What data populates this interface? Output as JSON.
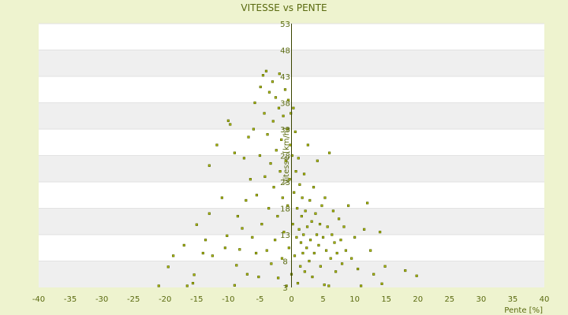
{
  "chart_data": {
    "type": "scatter",
    "title": "VITESSE vs PENTE",
    "xlabel": "Pente [%]",
    "ylabel": "Vitesse [km/h]",
    "xlim": [
      -40,
      40
    ],
    "ylim": [
      3,
      53
    ],
    "xticks": [
      "-40",
      "-35",
      "-30",
      "-25",
      "-20",
      "-15",
      "-10",
      "-5",
      "0",
      "5",
      "10",
      "15",
      "20",
      "25",
      "30",
      "35",
      "40"
    ],
    "yticks": [
      "53",
      "48",
      "43",
      "38",
      "33",
      "28",
      "23",
      "18",
      "13",
      "8",
      "3"
    ],
    "y_bottom_label": "3",
    "grid": true,
    "point_color": "#5c6b00",
    "series": [
      {
        "values": [
          [
            -21.0,
            2.2
          ],
          [
            -19.5,
            6.9
          ],
          [
            -18.7,
            9.0
          ],
          [
            -16.5,
            2.5
          ],
          [
            -17.0,
            11.0
          ],
          [
            -15.6,
            3.8
          ],
          [
            -15.4,
            5.4
          ],
          [
            -15.0,
            14.9
          ],
          [
            -14.0,
            9.5
          ],
          [
            -13.6,
            12.0
          ],
          [
            -13.0,
            17.0
          ],
          [
            -13.0,
            26.1
          ],
          [
            -12.5,
            9.0
          ],
          [
            -11.8,
            30.0
          ],
          [
            -11.0,
            20.0
          ],
          [
            -10.5,
            10.5
          ],
          [
            -10.2,
            12.8
          ],
          [
            -10.0,
            34.6
          ],
          [
            -9.7,
            33.9
          ],
          [
            -9.0,
            3.4
          ],
          [
            -9.0,
            28.5
          ],
          [
            -8.7,
            7.2
          ],
          [
            -8.5,
            16.5
          ],
          [
            -8.2,
            10.2
          ],
          [
            -7.8,
            14.2
          ],
          [
            -7.5,
            27.5
          ],
          [
            -7.2,
            19.5
          ],
          [
            -7.0,
            5.5
          ],
          [
            -6.8,
            31.5
          ],
          [
            -6.5,
            23.5
          ],
          [
            -6.2,
            12.5
          ],
          [
            -6.0,
            33.0
          ],
          [
            -5.8,
            38.0
          ],
          [
            -5.6,
            9.5
          ],
          [
            -5.5,
            20.5
          ],
          [
            -5.2,
            5.0
          ],
          [
            -5.0,
            28.0
          ],
          [
            -4.9,
            41.0
          ],
          [
            -4.7,
            15.0
          ],
          [
            -4.5,
            43.2
          ],
          [
            -4.3,
            36.0
          ],
          [
            -4.2,
            24.0
          ],
          [
            -4.0,
            44.0
          ],
          [
            -3.9,
            10.0
          ],
          [
            -3.8,
            32.0
          ],
          [
            -3.6,
            18.0
          ],
          [
            -3.5,
            40.0
          ],
          [
            -3.3,
            26.5
          ],
          [
            -3.2,
            7.5
          ],
          [
            -3.0,
            42.0
          ],
          [
            -2.9,
            34.5
          ],
          [
            -2.8,
            22.0
          ],
          [
            -2.6,
            12.0
          ],
          [
            -2.5,
            39.0
          ],
          [
            -2.4,
            29.0
          ],
          [
            -2.2,
            16.5
          ],
          [
            -2.1,
            4.8
          ],
          [
            -2.0,
            37.0
          ],
          [
            -1.9,
            43.5
          ],
          [
            -1.8,
            25.0
          ],
          [
            -1.6,
            31.0
          ],
          [
            -1.5,
            8.5
          ],
          [
            -1.4,
            20.0
          ],
          [
            -1.3,
            35.5
          ],
          [
            -1.2,
            13.5
          ],
          [
            -1.0,
            40.5
          ],
          [
            -0.9,
            27.0
          ],
          [
            -0.8,
            3.0
          ],
          [
            -0.7,
            33.0
          ],
          [
            -0.6,
            18.5
          ],
          [
            -0.5,
            38.5
          ],
          [
            -0.4,
            10.5
          ],
          [
            -0.3,
            23.5
          ],
          [
            -0.2,
            30.0
          ],
          [
            -0.1,
            36.0
          ],
          [
            0.0,
            5.5
          ],
          [
            0.1,
            28.0
          ],
          [
            0.2,
            15.0
          ],
          [
            0.3,
            37.0
          ],
          [
            0.4,
            21.0
          ],
          [
            0.5,
            9.0
          ],
          [
            0.6,
            32.5
          ],
          [
            0.7,
            25.0
          ],
          [
            0.8,
            12.5
          ],
          [
            0.9,
            18.0
          ],
          [
            1.0,
            3.8
          ],
          [
            1.1,
            27.5
          ],
          [
            1.2,
            14.0
          ],
          [
            1.3,
            22.5
          ],
          [
            1.4,
            7.0
          ],
          [
            1.5,
            11.5
          ],
          [
            1.6,
            16.5
          ],
          [
            1.7,
            20.0
          ],
          [
            1.8,
            9.5
          ],
          [
            1.9,
            13.0
          ],
          [
            2.0,
            24.5
          ],
          [
            2.1,
            6.0
          ],
          [
            2.2,
            17.5
          ],
          [
            2.4,
            10.5
          ],
          [
            2.5,
            14.5
          ],
          [
            2.6,
            30.0
          ],
          [
            2.8,
            8.0
          ],
          [
            2.9,
            19.5
          ],
          [
            3.0,
            12.0
          ],
          [
            3.2,
            15.5
          ],
          [
            3.3,
            5.0
          ],
          [
            3.5,
            22.0
          ],
          [
            3.6,
            9.5
          ],
          [
            3.8,
            17.0
          ],
          [
            4.0,
            13.0
          ],
          [
            4.1,
            27.0
          ],
          [
            4.3,
            11.0
          ],
          [
            4.5,
            15.0
          ],
          [
            4.6,
            7.0
          ],
          [
            4.8,
            18.5
          ],
          [
            5.0,
            12.5
          ],
          [
            5.2,
            3.5
          ],
          [
            5.3,
            20.0
          ],
          [
            5.5,
            10.0
          ],
          [
            5.7,
            14.5
          ],
          [
            5.9,
            3.2
          ],
          [
            6.0,
            28.5
          ],
          [
            6.2,
            8.5
          ],
          [
            6.4,
            13.0
          ],
          [
            6.6,
            17.5
          ],
          [
            6.8,
            11.5
          ],
          [
            7.0,
            6.0
          ],
          [
            7.2,
            9.5
          ],
          [
            7.5,
            16.0
          ],
          [
            7.8,
            12.0
          ],
          [
            8.0,
            7.5
          ],
          [
            8.3,
            14.5
          ],
          [
            8.6,
            10.0
          ],
          [
            9.0,
            18.5
          ],
          [
            9.5,
            8.5
          ],
          [
            10.0,
            12.5
          ],
          [
            10.5,
            6.5
          ],
          [
            11.0,
            3.2
          ],
          [
            11.5,
            14.0
          ],
          [
            12.0,
            19.0
          ],
          [
            12.5,
            10.0
          ],
          [
            13.0,
            5.5
          ],
          [
            14.0,
            13.5
          ],
          [
            14.3,
            3.7
          ],
          [
            14.8,
            7.0
          ],
          [
            18.0,
            6.2
          ],
          [
            19.8,
            5.2
          ]
        ]
      }
    ]
  }
}
